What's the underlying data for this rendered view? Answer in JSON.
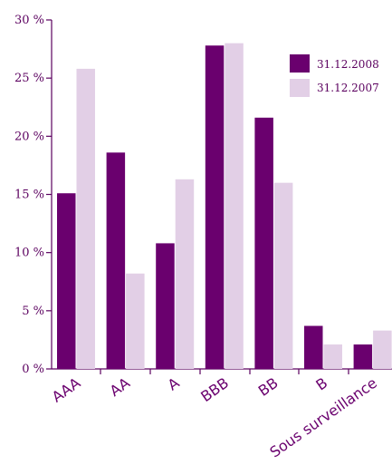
{
  "chart_data": {
    "type": "bar",
    "categories": [
      "AAA",
      "AA",
      "A",
      "BBB",
      "BB",
      "B",
      "Sous surveillance"
    ],
    "series": [
      {
        "name": "31.12.2008",
        "color": "#6a006e",
        "values": [
          15.1,
          18.6,
          10.8,
          27.8,
          21.6,
          3.7,
          2.1
        ]
      },
      {
        "name": "31.12.2007",
        "color": "#e2cfe6",
        "values": [
          25.8,
          8.2,
          16.3,
          28.0,
          16.0,
          2.1,
          3.3
        ]
      }
    ],
    "ylim": [
      0,
      30
    ],
    "yticks": [
      0,
      5,
      10,
      15,
      20,
      25,
      30
    ],
    "ytick_labels": [
      "0 %",
      "5 %",
      "10 %",
      "15 %",
      "20 %",
      "25 %",
      "30 %"
    ],
    "title": "",
    "xlabel": "",
    "ylabel": "",
    "legend_position": "top-right",
    "grid": false
  }
}
